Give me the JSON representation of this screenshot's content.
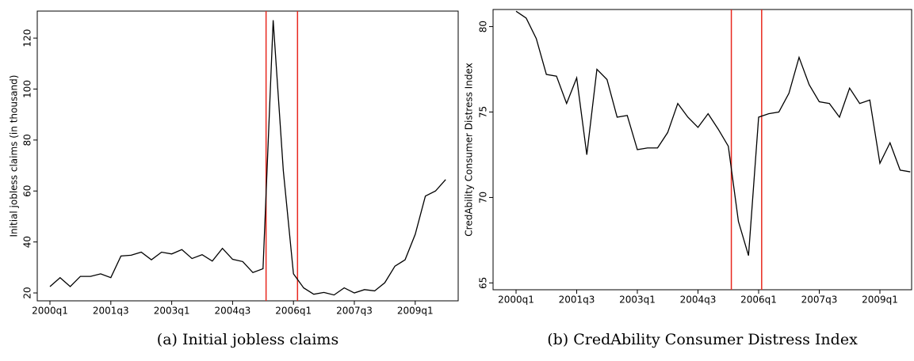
{
  "chart_data": [
    {
      "type": "line",
      "ylabel": "Initial jobless claims (in thousand)",
      "caption": "(a) Initial jobless claims",
      "categories": [
        "2000q1",
        null,
        null,
        null,
        null,
        null,
        "2001q3",
        null,
        null,
        null,
        null,
        null,
        "2003q1",
        null,
        null,
        null,
        null,
        null,
        "2004q3",
        null,
        null,
        null,
        null,
        null,
        "2006q1",
        null,
        null,
        null,
        null,
        null,
        "2007q3",
        null,
        null,
        null,
        null,
        null,
        "2009q1",
        null,
        null,
        null
      ],
      "values": [
        22.5,
        26,
        22.5,
        26.5,
        26.5,
        27.5,
        26,
        34.5,
        34.8,
        36,
        33,
        36,
        35.3,
        37,
        33.5,
        35,
        32.5,
        37.5,
        33.2,
        32.3,
        28,
        29.5,
        127,
        68,
        27.5,
        22,
        19.5,
        20.2,
        19.2,
        22,
        20,
        21.3,
        20.8,
        24,
        30.5,
        33,
        43,
        58,
        60,
        64.5
      ],
      "color": "#000000",
      "vlines": [
        21.3,
        24.4
      ],
      "vline_color": "#e8281e",
      "ylim": [
        16.9,
        130.6
      ],
      "yticks": [
        20,
        40,
        60,
        80,
        100,
        120
      ]
    },
    {
      "type": "line",
      "ylabel": "CredAbility Consumer Distress Index",
      "caption": "(b) CredAbility Consumer Distress Index",
      "categories": [
        "2000q1",
        null,
        null,
        null,
        null,
        null,
        "2001q3",
        null,
        null,
        null,
        null,
        null,
        "2003q1",
        null,
        null,
        null,
        null,
        null,
        "2004q3",
        null,
        null,
        null,
        null,
        null,
        "2006q1",
        null,
        null,
        null,
        null,
        null,
        "2007q3",
        null,
        null,
        null,
        null,
        null,
        "2009q1",
        null,
        null,
        null
      ],
      "values": [
        80.9,
        80.5,
        79.3,
        77.2,
        77.1,
        75.5,
        77,
        72.5,
        77.5,
        76.9,
        74.7,
        74.8,
        72.8,
        72.9,
        72.9,
        73.8,
        75.5,
        74.7,
        74.1,
        74.9,
        74,
        73,
        68.6,
        66.6,
        74.7,
        74.9,
        75,
        76.1,
        78.2,
        76.6,
        75.6,
        75.5,
        74.7,
        76.4,
        75.5,
        75.7,
        72,
        73.2,
        71.6,
        71.5
      ],
      "color": "#000000",
      "vlines": [
        21.3,
        24.3
      ],
      "vline_color": "#e8281e",
      "ylim": [
        64.6,
        81.0
      ],
      "yticks": [
        65,
        70,
        75,
        80
      ]
    }
  ]
}
